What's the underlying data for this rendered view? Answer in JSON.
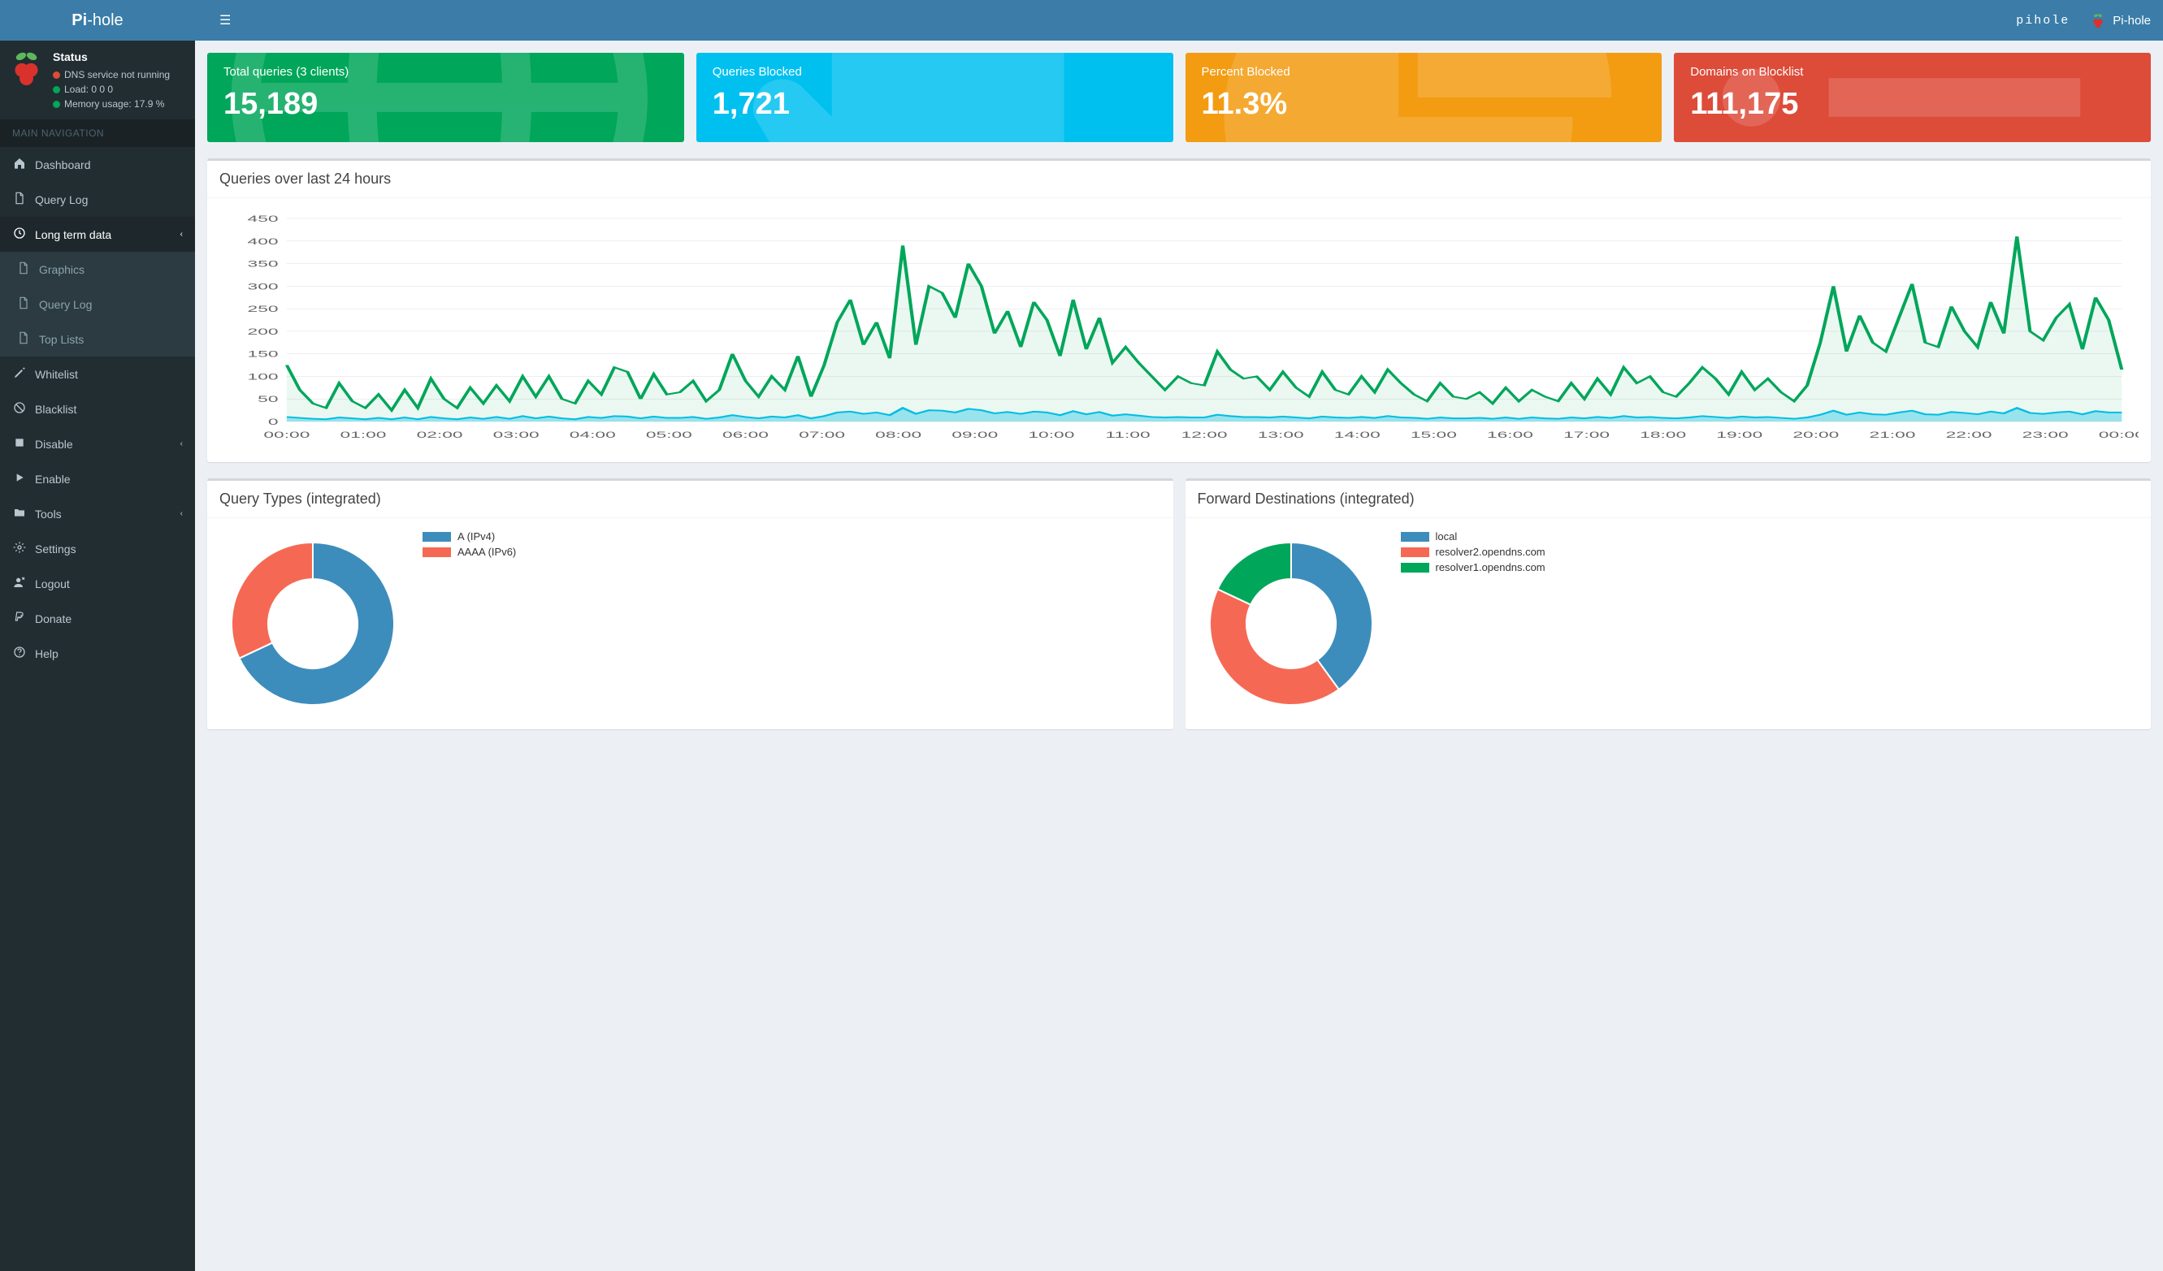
{
  "header": {
    "logo_html": "Pi-hole",
    "hostname": "pihole",
    "brand": "Pi-hole"
  },
  "status": {
    "title": "Status",
    "dns": {
      "label": "DNS service not running",
      "color": "#dd4b39"
    },
    "load": {
      "label": "Load:  0  0  0",
      "color": "#00a65a"
    },
    "mem": {
      "label": "Memory usage:  17.9 %",
      "color": "#00a65a"
    }
  },
  "nav": {
    "header": "MAIN NAVIGATION",
    "items": [
      {
        "icon": "home",
        "label": "Dashboard",
        "sub": null
      },
      {
        "icon": "file",
        "label": "Query Log",
        "sub": null
      },
      {
        "icon": "clock",
        "label": "Long term data",
        "expanded": true,
        "sub": [
          {
            "icon": "file",
            "label": "Graphics"
          },
          {
            "icon": "file",
            "label": "Query Log"
          },
          {
            "icon": "file",
            "label": "Top Lists"
          }
        ]
      },
      {
        "icon": "pencil",
        "label": "Whitelist",
        "sub": null
      },
      {
        "icon": "ban",
        "label": "Blacklist",
        "sub": null
      },
      {
        "icon": "stop",
        "label": "Disable",
        "chev": true,
        "sub": null
      },
      {
        "icon": "play",
        "label": "Enable",
        "sub": null
      },
      {
        "icon": "folder",
        "label": "Tools",
        "chev": true,
        "sub": null
      },
      {
        "icon": "gear",
        "label": "Settings",
        "sub": null
      },
      {
        "icon": "user-x",
        "label": "Logout",
        "sub": null
      },
      {
        "icon": "paypal",
        "label": "Donate",
        "sub": null
      },
      {
        "icon": "help",
        "label": "Help",
        "sub": null
      }
    ]
  },
  "stats": {
    "total": {
      "label": "Total queries (3 clients)",
      "value": "15,189",
      "bg": "#00a65a",
      "icon": "globe"
    },
    "blocked": {
      "label": "Queries Blocked",
      "value": "1,721",
      "bg": "#00c0ef",
      "icon": "hand"
    },
    "percent": {
      "label": "Percent Blocked",
      "value": "11.3%",
      "bg": "#f39c12",
      "icon": "pie"
    },
    "domains": {
      "label": "Domains on Blocklist",
      "value": "111,175",
      "bg": "#dd4b39",
      "icon": "list"
    }
  },
  "timeline": {
    "title": "Queries over last 24 hours",
    "ylim": [
      0,
      450
    ],
    "ytick_step": 50,
    "yticks": [
      0,
      50,
      100,
      150,
      200,
      250,
      300,
      350,
      400,
      450
    ],
    "xticks": [
      "00:00",
      "01:00",
      "02:00",
      "03:00",
      "04:00",
      "05:00",
      "06:00",
      "07:00",
      "08:00",
      "09:00",
      "10:00",
      "11:00",
      "12:00",
      "13:00",
      "14:00",
      "15:00",
      "16:00",
      "17:00",
      "18:00",
      "19:00",
      "20:00",
      "21:00",
      "22:00",
      "23:00",
      "00:00"
    ],
    "permitted_color": "#00a65a",
    "blocked_color": "#00c0ef",
    "permitted_fill": "rgba(0,166,90,0.08)",
    "blocked_fill": "rgba(0,192,239,0.35)",
    "line_width": 2,
    "background_color": "#ffffff",
    "grid_color": "#dddddd",
    "label_fontsize": 11,
    "permitted": [
      125,
      70,
      40,
      30,
      85,
      45,
      30,
      60,
      25,
      70,
      30,
      95,
      50,
      30,
      75,
      40,
      80,
      45,
      100,
      55,
      100,
      50,
      40,
      90,
      60,
      120,
      110,
      50,
      105,
      60,
      65,
      90,
      45,
      70,
      150,
      90,
      55,
      100,
      70,
      145,
      55,
      125,
      220,
      270,
      170,
      220,
      140,
      390,
      170,
      300,
      285,
      230,
      350,
      300,
      195,
      245,
      165,
      265,
      225,
      145,
      270,
      160,
      230,
      130,
      165,
      130,
      100,
      70,
      100,
      85,
      80,
      155,
      115,
      95,
      100,
      70,
      110,
      75,
      55,
      110,
      70,
      60,
      100,
      65,
      115,
      85,
      60,
      45,
      85,
      55,
      50,
      65,
      40,
      75,
      45,
      70,
      55,
      45,
      85,
      50,
      95,
      60,
      120,
      85,
      100,
      65,
      55,
      85,
      120,
      95,
      60,
      110,
      70,
      95,
      65,
      45,
      80,
      175,
      300,
      155,
      235,
      175,
      155,
      230,
      305,
      175,
      165,
      255,
      200,
      165,
      265,
      195,
      410,
      200,
      180,
      230,
      260,
      160,
      275,
      225,
      115
    ],
    "blocked": [
      10,
      8,
      6,
      5,
      9,
      7,
      5,
      8,
      5,
      9,
      5,
      10,
      7,
      5,
      9,
      6,
      10,
      6,
      12,
      7,
      11,
      7,
      5,
      10,
      8,
      12,
      11,
      7,
      11,
      8,
      8,
      10,
      6,
      9,
      14,
      10,
      7,
      11,
      9,
      14,
      7,
      12,
      20,
      22,
      17,
      20,
      14,
      30,
      17,
      25,
      24,
      20,
      28,
      25,
      18,
      21,
      17,
      22,
      20,
      14,
      23,
      16,
      21,
      13,
      16,
      13,
      10,
      9,
      10,
      9,
      9,
      15,
      12,
      10,
      10,
      9,
      11,
      9,
      7,
      11,
      9,
      8,
      10,
      8,
      12,
      9,
      8,
      6,
      9,
      7,
      7,
      8,
      6,
      9,
      6,
      9,
      7,
      6,
      9,
      7,
      10,
      8,
      12,
      9,
      10,
      8,
      7,
      9,
      12,
      10,
      8,
      11,
      9,
      10,
      8,
      6,
      9,
      15,
      24,
      15,
      20,
      16,
      15,
      20,
      24,
      16,
      15,
      21,
      19,
      16,
      22,
      18,
      30,
      19,
      17,
      20,
      22,
      16,
      23,
      20,
      20
    ]
  },
  "query_types": {
    "title": "Query Types (integrated)",
    "type": "doughnut",
    "inner_ratio": 0.55,
    "background_color": "#ffffff",
    "slices": [
      {
        "label": "A (IPv4)",
        "value": 68,
        "color": "#3c8dbc"
      },
      {
        "label": "AAAA (IPv6)",
        "value": 32,
        "color": "#f56954"
      }
    ]
  },
  "forward_dest": {
    "title": "Forward Destinations (integrated)",
    "type": "doughnut",
    "inner_ratio": 0.55,
    "background_color": "#ffffff",
    "slices": [
      {
        "label": "local",
        "value": 40,
        "color": "#3c8dbc"
      },
      {
        "label": "resolver2.opendns.com",
        "value": 42,
        "color": "#f56954"
      },
      {
        "label": "resolver1.opendns.com",
        "value": 18,
        "color": "#00a65a"
      }
    ]
  },
  "icons": {
    "raspberry_red": "#d9322d",
    "raspberry_leaf": "#5cb85c"
  }
}
